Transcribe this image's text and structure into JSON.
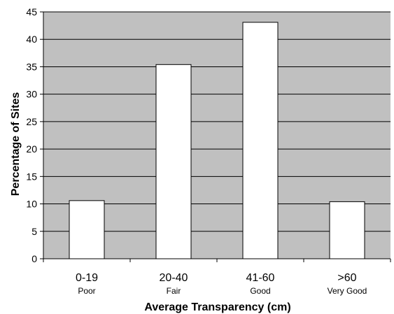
{
  "chart_data": {
    "type": "bar",
    "title": "",
    "xlabel": "Average Transparency (cm)",
    "ylabel": "Percentage of Sites",
    "categories": [
      "0-19",
      "20-40",
      "41-60",
      ">60"
    ],
    "category_sublabels": [
      "Poor",
      "Fair",
      "Good",
      "Very Good"
    ],
    "values": [
      10.6,
      35.4,
      43.1,
      10.4
    ],
    "ylim": [
      0,
      45
    ],
    "yticks": [
      "0",
      "5",
      "10",
      "15",
      "20",
      "25",
      "30",
      "35",
      "40",
      "45"
    ],
    "grid": true,
    "colors": {
      "plot_background": "#c0c0c0",
      "bar_fill": "#ffffff",
      "bar_stroke": "#000000",
      "gridline": "#000000"
    }
  }
}
